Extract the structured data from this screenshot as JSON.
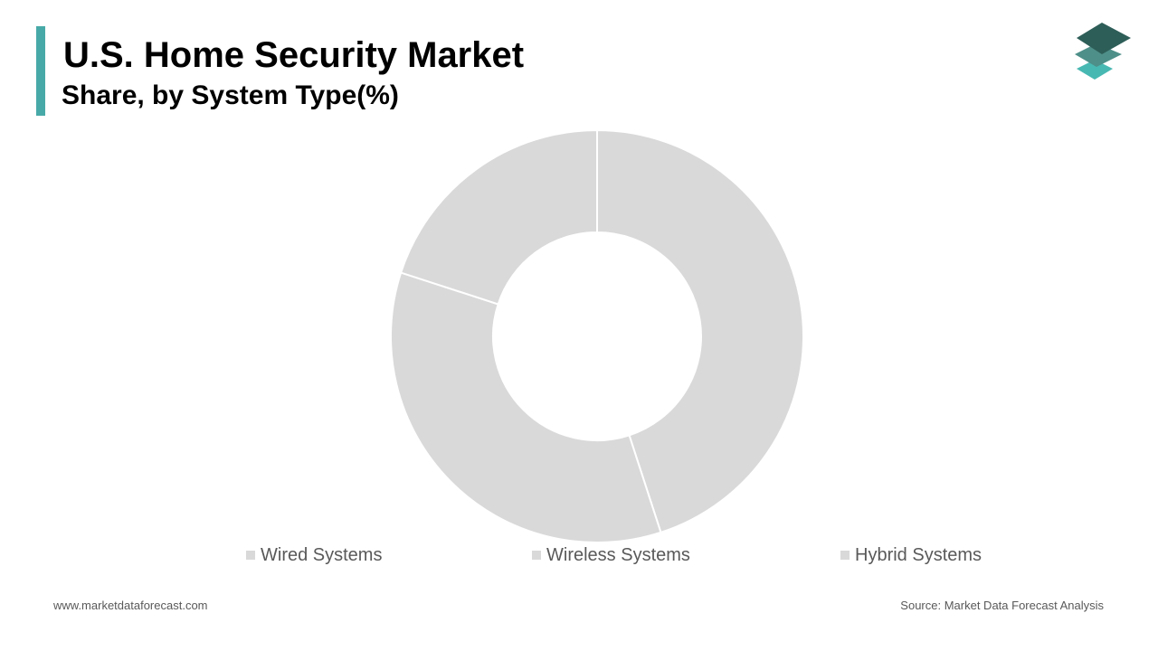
{
  "header": {
    "title": "U.S. Home Security Market",
    "subtitle": "Share, by System Type(%)"
  },
  "colors": {
    "accent": "#48aaa8",
    "slice": "#d9d9d9",
    "separator": "#ffffff",
    "logo_top": "#2e5e58",
    "logo_mid": "#4e8f89",
    "logo_bottom": "#48b8b2"
  },
  "logo": {
    "icon": "stacked-layers-icon"
  },
  "chart_data": {
    "type": "pie",
    "hole": true,
    "categories": [
      "Wired Systems",
      "Wireless Systems",
      "Hybrid Systems"
    ],
    "values": [
      45,
      35,
      20
    ],
    "legend_position": "bottom"
  },
  "footer": {
    "website": "www.marketdataforecast.com",
    "source": "Source: Market Data Forecast Analysis"
  }
}
